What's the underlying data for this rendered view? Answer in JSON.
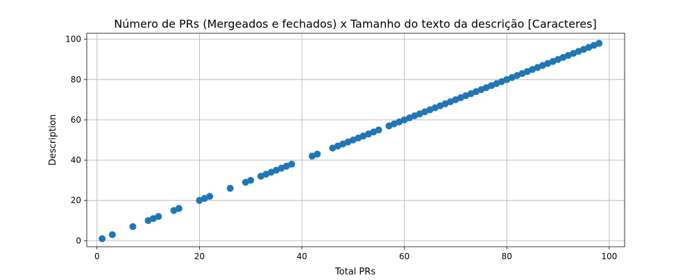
{
  "chart_data": {
    "type": "scatter",
    "title": "Número de PRs (Mergeados e fechados) x Tamanho do texto da descrição [Caracteres]",
    "xlabel": "Total PRs",
    "ylabel": "Description",
    "xlim": [
      -2,
      103
    ],
    "ylim": [
      -3,
      103
    ],
    "xticks": [
      0,
      20,
      40,
      60,
      80,
      100
    ],
    "xtick_labels": [
      "0",
      "20",
      "40",
      "60",
      "80",
      "100"
    ],
    "yticks": [
      0,
      20,
      40,
      60,
      80,
      100
    ],
    "ytick_labels": [
      "0",
      "20",
      "40",
      "60",
      "80",
      "100"
    ],
    "grid": true,
    "legend": "none",
    "marker_color": "#1f77b4",
    "series": [
      {
        "x": [
          1,
          3,
          7,
          10,
          11,
          12,
          15,
          16,
          20,
          21,
          22,
          26,
          29,
          30,
          32,
          33,
          34,
          35,
          36,
          37,
          38,
          42,
          43,
          46,
          47,
          48,
          49,
          50,
          51,
          52,
          53,
          54,
          55,
          57,
          58,
          59,
          60,
          61,
          62,
          63,
          64,
          65,
          66,
          67,
          68,
          69,
          70,
          71,
          72,
          73,
          74,
          75,
          76,
          77,
          78,
          79,
          80,
          81,
          82,
          83,
          84,
          85,
          86,
          87,
          88,
          89,
          90,
          91,
          92,
          93,
          94,
          95,
          96,
          97,
          98
        ],
        "y": [
          1,
          3,
          7,
          10,
          11,
          12,
          15,
          16,
          20,
          21,
          22,
          26,
          29,
          30,
          32,
          33,
          34,
          35,
          36,
          37,
          38,
          42,
          43,
          46,
          47,
          48,
          49,
          50,
          51,
          52,
          53,
          54,
          55,
          57,
          58,
          59,
          60,
          61,
          62,
          63,
          64,
          65,
          66,
          67,
          68,
          69,
          70,
          71,
          72,
          73,
          74,
          75,
          76,
          77,
          78,
          79,
          80,
          81,
          82,
          83,
          84,
          85,
          86,
          87,
          88,
          89,
          90,
          91,
          92,
          93,
          94,
          95,
          96,
          97,
          98
        ]
      }
    ]
  }
}
